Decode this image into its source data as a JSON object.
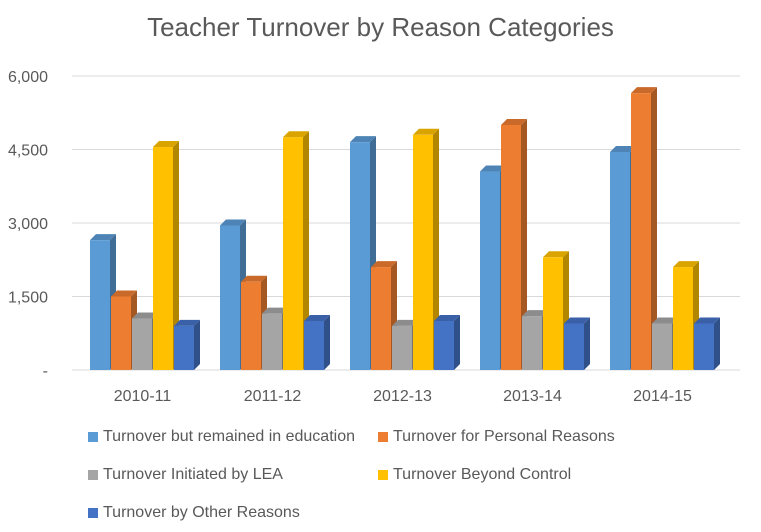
{
  "chart_data": {
    "type": "bar",
    "title": "Teacher Turnover by Reason Categories",
    "xlabel": "",
    "ylabel": "",
    "categories": [
      "2010-11",
      "2011-12",
      "2012-13",
      "2013-14",
      "2014-15"
    ],
    "ylim": [
      0,
      6000
    ],
    "yticks": [
      0,
      1500,
      3000,
      4500,
      6000
    ],
    "ytick_labels": [
      "-",
      "1,500",
      "3,000",
      "4,500",
      "6,000"
    ],
    "grid": true,
    "legend_position": "bottom",
    "series": [
      {
        "name": "Turnover but remained in education",
        "color": "#5B9BD5",
        "values": [
          2650,
          2950,
          4650,
          4050,
          4450
        ]
      },
      {
        "name": "Turnover for Personal Reasons",
        "color": "#ED7D31",
        "values": [
          1500,
          1800,
          2100,
          5000,
          5650
        ]
      },
      {
        "name": "Turnover Initiated by LEA",
        "color": "#A5A5A5",
        "values": [
          1050,
          1150,
          900,
          1100,
          950
        ]
      },
      {
        "name": "Turnover Beyond Control",
        "color": "#FFC000",
        "values": [
          4550,
          4750,
          4800,
          2300,
          2100
        ]
      },
      {
        "name": "Turnover by Other Reasons",
        "color": "#4472C4",
        "values": [
          900,
          1000,
          1000,
          950,
          950
        ]
      }
    ]
  }
}
